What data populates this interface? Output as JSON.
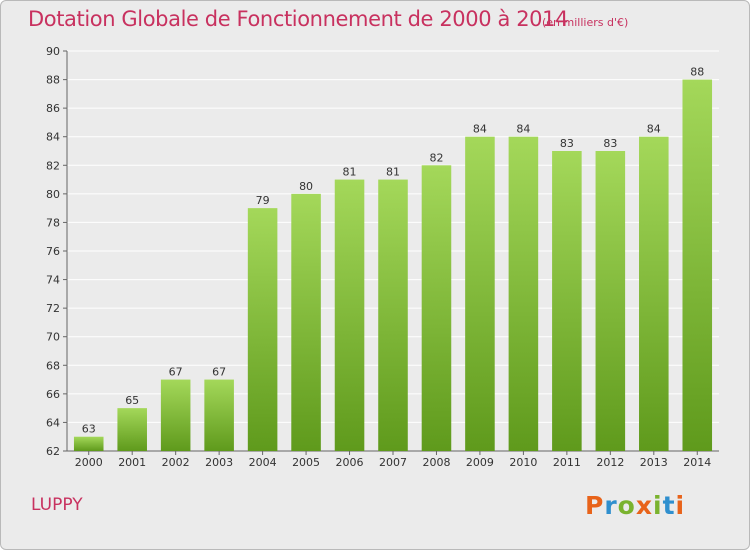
{
  "header": {
    "title": "Dotation Globale de Fonctionnement de 2000 à 2014",
    "subtitle": "(en milliers d'€)"
  },
  "commune": "LUPPY",
  "logo": {
    "letters": [
      "P",
      "r",
      "o",
      "x",
      "i",
      "t",
      "i"
    ],
    "colors": [
      "#e8631a",
      "#2f8fce",
      "#7ab32e",
      "#e8631a",
      "#7ab32e",
      "#2f8fce",
      "#e8631a"
    ]
  },
  "colors": {
    "bar_top": "#a4d85a",
    "bar_bottom": "#5f9a1c",
    "title": "#c8315f",
    "background": "#ebebeb",
    "grid": "#ffffff"
  },
  "chart_data": {
    "type": "bar",
    "categories": [
      "2000",
      "2001",
      "2002",
      "2003",
      "2004",
      "2005",
      "2006",
      "2007",
      "2008",
      "2009",
      "2010",
      "2011",
      "2012",
      "2013",
      "2014"
    ],
    "values": [
      63,
      65,
      67,
      67,
      79,
      80,
      81,
      81,
      82,
      84,
      84,
      83,
      83,
      84,
      88
    ],
    "value_labels": [
      "63",
      "65",
      "67",
      "67",
      "79",
      "80",
      "81",
      "81",
      "82",
      "84",
      "84",
      "83",
      "83",
      "84",
      "88"
    ],
    "title": "Dotation Globale de Fonctionnement de 2000 à 2014",
    "subtitle": "(en milliers d'€)",
    "xlabel": "",
    "ylabel": "",
    "ylim": [
      62,
      90
    ],
    "yticks": [
      "62",
      "64",
      "66",
      "68",
      "70",
      "72",
      "74",
      "76",
      "78",
      "80",
      "82",
      "84",
      "86",
      "88",
      "90"
    ],
    "grid": true,
    "legend": "none"
  }
}
